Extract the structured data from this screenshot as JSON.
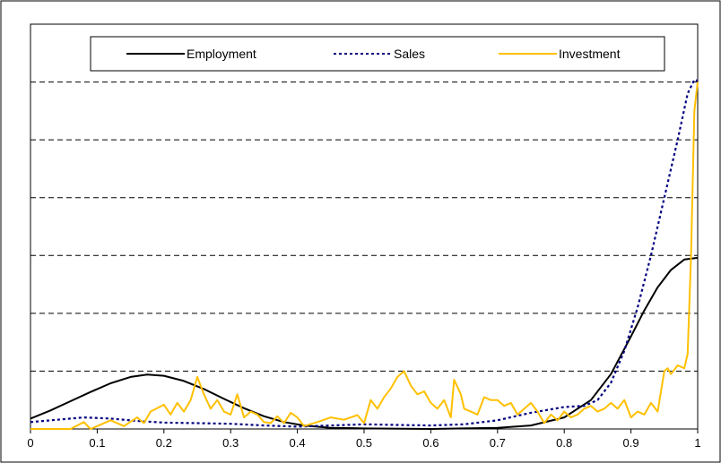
{
  "chart_data": {
    "type": "line",
    "title": "",
    "xlabel": "",
    "ylabel": "",
    "xlim": [
      0,
      1
    ],
    "ylim": [
      0,
      7
    ],
    "x_ticks": [
      "0",
      "0.1",
      "0.2",
      "0.3",
      "0.4",
      "0.5",
      "0.6",
      "0.7",
      "0.8",
      "0.9",
      "1"
    ],
    "y_tick_labels_shown": false,
    "grid": "horizontal dashed",
    "legend_position": "top",
    "series": [
      {
        "name": "Employment",
        "color": "#000000",
        "style": "solid",
        "points": [
          [
            0,
            0.18
          ],
          [
            0.03,
            0.32
          ],
          [
            0.06,
            0.48
          ],
          [
            0.09,
            0.64
          ],
          [
            0.12,
            0.79
          ],
          [
            0.15,
            0.9
          ],
          [
            0.175,
            0.94
          ],
          [
            0.2,
            0.92
          ],
          [
            0.23,
            0.83
          ],
          [
            0.26,
            0.69
          ],
          [
            0.29,
            0.52
          ],
          [
            0.32,
            0.36
          ],
          [
            0.35,
            0.22
          ],
          [
            0.38,
            0.12
          ],
          [
            0.41,
            0.06
          ],
          [
            0.45,
            0.02
          ],
          [
            0.5,
            0.01
          ],
          [
            0.6,
            0.0
          ],
          [
            0.7,
            0.02
          ],
          [
            0.75,
            0.06
          ],
          [
            0.8,
            0.2
          ],
          [
            0.84,
            0.5
          ],
          [
            0.87,
            0.95
          ],
          [
            0.9,
            1.6
          ],
          [
            0.92,
            2.05
          ],
          [
            0.94,
            2.45
          ],
          [
            0.96,
            2.75
          ],
          [
            0.98,
            2.93
          ],
          [
            1.0,
            2.96
          ]
        ]
      },
      {
        "name": "Sales",
        "color": "#000080",
        "style": "dotted",
        "points": [
          [
            0,
            0.12
          ],
          [
            0.04,
            0.16
          ],
          [
            0.08,
            0.2
          ],
          [
            0.12,
            0.18
          ],
          [
            0.16,
            0.14
          ],
          [
            0.2,
            0.11
          ],
          [
            0.25,
            0.1
          ],
          [
            0.3,
            0.09
          ],
          [
            0.35,
            0.06
          ],
          [
            0.4,
            0.04
          ],
          [
            0.45,
            0.06
          ],
          [
            0.5,
            0.08
          ],
          [
            0.55,
            0.07
          ],
          [
            0.6,
            0.06
          ],
          [
            0.65,
            0.08
          ],
          [
            0.7,
            0.15
          ],
          [
            0.75,
            0.28
          ],
          [
            0.8,
            0.38
          ],
          [
            0.83,
            0.4
          ],
          [
            0.85,
            0.5
          ],
          [
            0.87,
            0.8
          ],
          [
            0.89,
            1.35
          ],
          [
            0.91,
            2.1
          ],
          [
            0.93,
            3.0
          ],
          [
            0.95,
            4.0
          ],
          [
            0.97,
            5.0
          ],
          [
            0.985,
            5.8
          ],
          [
            0.995,
            6.04
          ],
          [
            1.0,
            6.02
          ]
        ]
      },
      {
        "name": "Investment",
        "color": "#ffc000",
        "style": "solid",
        "points": [
          [
            0,
            0.0
          ],
          [
            0.06,
            0.0
          ],
          [
            0.08,
            0.12
          ],
          [
            0.09,
            0.0
          ],
          [
            0.1,
            0.05
          ],
          [
            0.12,
            0.15
          ],
          [
            0.14,
            0.05
          ],
          [
            0.16,
            0.2
          ],
          [
            0.17,
            0.1
          ],
          [
            0.18,
            0.3
          ],
          [
            0.2,
            0.42
          ],
          [
            0.21,
            0.25
          ],
          [
            0.22,
            0.45
          ],
          [
            0.23,
            0.3
          ],
          [
            0.24,
            0.5
          ],
          [
            0.25,
            0.9
          ],
          [
            0.26,
            0.6
          ],
          [
            0.27,
            0.35
          ],
          [
            0.28,
            0.5
          ],
          [
            0.29,
            0.3
          ],
          [
            0.3,
            0.25
          ],
          [
            0.31,
            0.6
          ],
          [
            0.32,
            0.2
          ],
          [
            0.33,
            0.3
          ],
          [
            0.34,
            0.25
          ],
          [
            0.35,
            0.12
          ],
          [
            0.36,
            0.1
          ],
          [
            0.37,
            0.22
          ],
          [
            0.38,
            0.1
          ],
          [
            0.39,
            0.28
          ],
          [
            0.4,
            0.2
          ],
          [
            0.41,
            0.05
          ],
          [
            0.43,
            0.12
          ],
          [
            0.45,
            0.2
          ],
          [
            0.47,
            0.16
          ],
          [
            0.49,
            0.24
          ],
          [
            0.5,
            0.1
          ],
          [
            0.51,
            0.5
          ],
          [
            0.52,
            0.35
          ],
          [
            0.53,
            0.55
          ],
          [
            0.54,
            0.7
          ],
          [
            0.55,
            0.9
          ],
          [
            0.56,
            1.0
          ],
          [
            0.57,
            0.75
          ],
          [
            0.58,
            0.6
          ],
          [
            0.59,
            0.65
          ],
          [
            0.6,
            0.45
          ],
          [
            0.61,
            0.35
          ],
          [
            0.62,
            0.5
          ],
          [
            0.63,
            0.2
          ],
          [
            0.635,
            0.85
          ],
          [
            0.645,
            0.6
          ],
          [
            0.65,
            0.35
          ],
          [
            0.66,
            0.3
          ],
          [
            0.67,
            0.25
          ],
          [
            0.68,
            0.55
          ],
          [
            0.69,
            0.5
          ],
          [
            0.7,
            0.5
          ],
          [
            0.71,
            0.4
          ],
          [
            0.72,
            0.45
          ],
          [
            0.73,
            0.25
          ],
          [
            0.74,
            0.35
          ],
          [
            0.75,
            0.45
          ],
          [
            0.76,
            0.3
          ],
          [
            0.77,
            0.1
          ],
          [
            0.78,
            0.25
          ],
          [
            0.79,
            0.15
          ],
          [
            0.8,
            0.3
          ],
          [
            0.81,
            0.2
          ],
          [
            0.82,
            0.25
          ],
          [
            0.83,
            0.35
          ],
          [
            0.84,
            0.4
          ],
          [
            0.85,
            0.3
          ],
          [
            0.86,
            0.35
          ],
          [
            0.87,
            0.45
          ],
          [
            0.88,
            0.35
          ],
          [
            0.89,
            0.5
          ],
          [
            0.9,
            0.2
          ],
          [
            0.91,
            0.3
          ],
          [
            0.92,
            0.25
          ],
          [
            0.93,
            0.45
          ],
          [
            0.94,
            0.3
          ],
          [
            0.95,
            1.0
          ],
          [
            0.955,
            1.05
          ],
          [
            0.96,
            0.95
          ],
          [
            0.97,
            1.1
          ],
          [
            0.98,
            1.05
          ],
          [
            0.985,
            1.3
          ],
          [
            0.99,
            3.0
          ],
          [
            0.995,
            5.5
          ],
          [
            1.0,
            6.0
          ]
        ]
      }
    ]
  }
}
